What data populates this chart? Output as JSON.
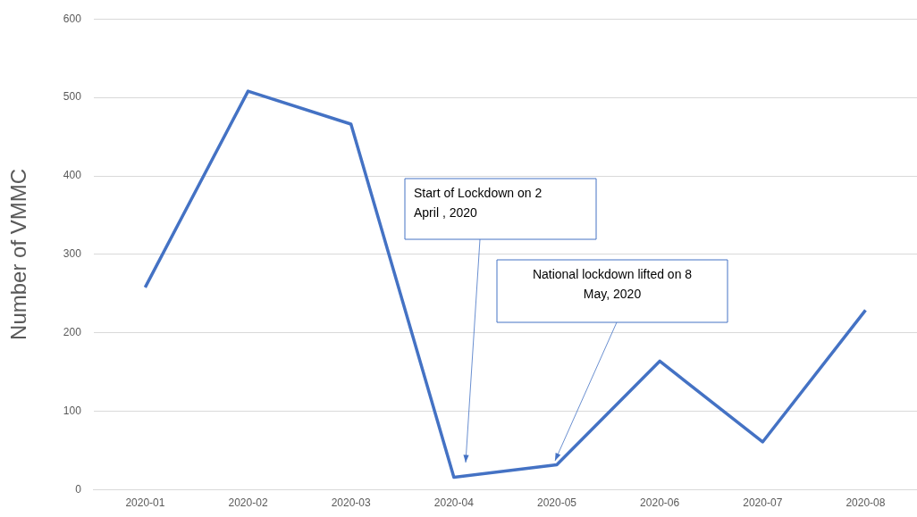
{
  "chart_data": {
    "type": "line",
    "ylabel": "Number of VMMC",
    "categories": [
      "2020-01",
      "2020-02",
      "2020-03",
      "2020-04",
      "2020-05",
      "2020-06",
      "2020-07",
      "2020-08"
    ],
    "values": [
      258,
      508,
      466,
      16,
      32,
      164,
      61,
      229
    ],
    "color": "#4472c4",
    "ylim": [
      0,
      600
    ],
    "yticks": [
      0,
      100,
      200,
      300,
      400,
      500,
      600
    ],
    "grid": "y",
    "marker": "none",
    "annotations": [
      "Start of Lockdown on 2 April , 2020",
      "National lockdown lifted on 8 May, 2020"
    ]
  }
}
